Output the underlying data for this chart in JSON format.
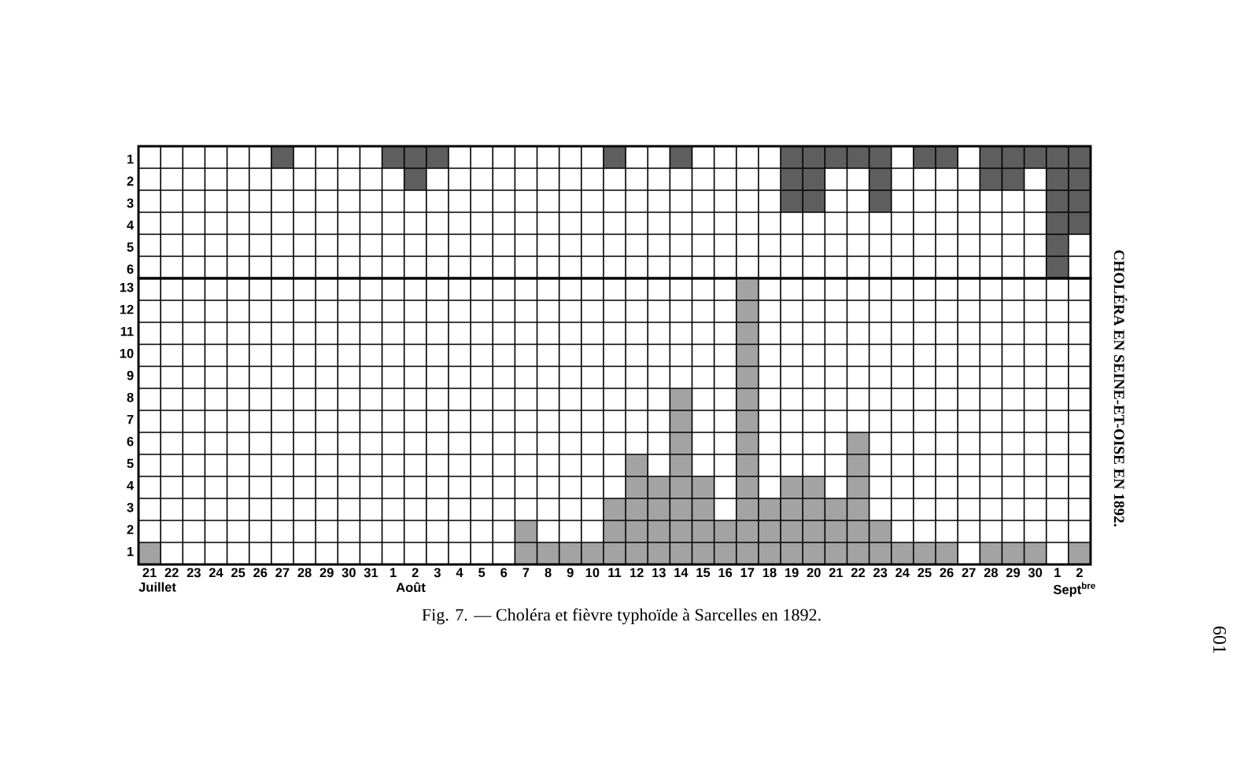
{
  "chart_data": [
    {
      "type": "bar",
      "categories": [
        "21",
        "22",
        "23",
        "24",
        "25",
        "26",
        "27",
        "28",
        "29",
        "30",
        "31",
        "1",
        "2",
        "3",
        "4",
        "5",
        "6",
        "7",
        "8",
        "9",
        "10",
        "11",
        "12",
        "13",
        "14",
        "15",
        "16",
        "17",
        "18",
        "19",
        "20",
        "21",
        "22",
        "23",
        "24",
        "25",
        "26",
        "27",
        "28",
        "29",
        "30",
        "1",
        "2"
      ],
      "values": [
        0,
        0,
        0,
        0,
        0,
        0,
        1,
        0,
        0,
        0,
        0,
        1,
        2,
        1,
        0,
        0,
        0,
        0,
        0,
        0,
        0,
        1,
        0,
        0,
        1,
        0,
        0,
        0,
        0,
        3,
        3,
        1,
        1,
        3,
        0,
        1,
        1,
        0,
        2,
        2,
        1,
        6,
        4
      ],
      "color": "#5e5e5e",
      "ylim": [
        6,
        0
      ],
      "yticks": [
        1,
        2,
        3,
        4,
        5,
        6
      ],
      "grid": true,
      "tick_labels": "y"
    },
    {
      "type": "bar",
      "title": "Fig. 7. — Choléra et fièvre typhoïde à Sarcelles en 1892.",
      "categories": [
        "21",
        "22",
        "23",
        "24",
        "25",
        "26",
        "27",
        "28",
        "29",
        "30",
        "31",
        "1",
        "2",
        "3",
        "4",
        "5",
        "6",
        "7",
        "8",
        "9",
        "10",
        "11",
        "12",
        "13",
        "14",
        "15",
        "16",
        "17",
        "18",
        "19",
        "20",
        "21",
        "22",
        "23",
        "24",
        "25",
        "26",
        "27",
        "28",
        "29",
        "30",
        "1",
        "2"
      ],
      "values": [
        1,
        0,
        0,
        0,
        0,
        0,
        0,
        0,
        0,
        0,
        0,
        0,
        0,
        0,
        0,
        0,
        0,
        2,
        1,
        1,
        1,
        3,
        5,
        4,
        8,
        4,
        2,
        13,
        3,
        4,
        4,
        3,
        6,
        2,
        1,
        1,
        1,
        0,
        1,
        1,
        1,
        0,
        1
      ],
      "color": "#a3a3a3",
      "ylim": [
        0,
        13
      ],
      "yticks": [
        1,
        2,
        3,
        4,
        5,
        6,
        7,
        8,
        9,
        10,
        11,
        12,
        13
      ],
      "grid": true,
      "annotations": [
        "Juillet",
        "Août",
        "Sept$^{bre}$",
        "CHOLÉRA EN SEINE-ET-OISE EN 1892.",
        "601"
      ]
    }
  ]
}
